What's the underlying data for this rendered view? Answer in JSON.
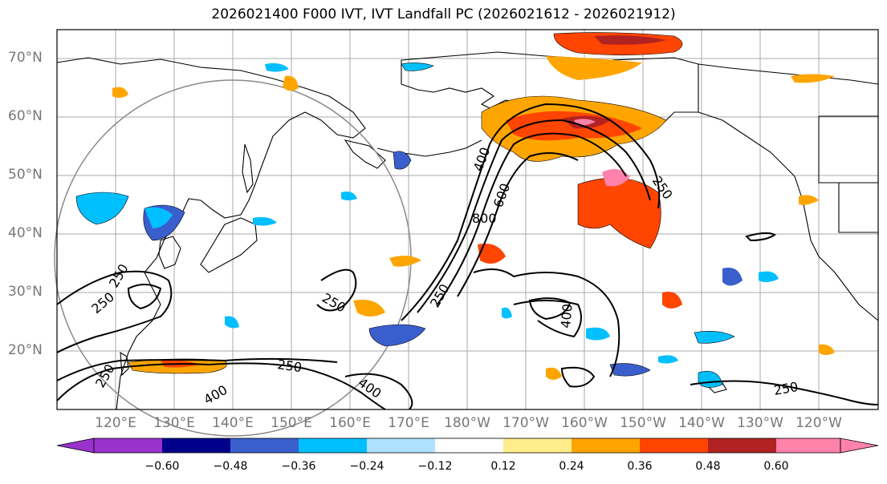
{
  "title": "2026021400 F000 IVT, IVT Landfall PC (2026021612 - 2026021912)",
  "lat_labels": [
    "70°N",
    "60°N",
    "50°N",
    "40°N",
    "30°N",
    "20°N"
  ],
  "lon_labels": [
    "120°E",
    "130°E",
    "140°E",
    "150°E",
    "160°E",
    "170°E",
    "180°W",
    "170°W",
    "160°W",
    "150°W",
    "140°W",
    "130°W",
    "120°W"
  ],
  "contour_labels": [
    "250",
    "400",
    "600",
    "800",
    "250",
    "250",
    "400",
    "250",
    "250",
    "250",
    "400",
    "250",
    "400",
    "250"
  ],
  "colorbar": {
    "ticks": [
      "−0.60",
      "−0.48",
      "−0.36",
      "−0.24",
      "−0.12",
      "0.12",
      "0.24",
      "0.36",
      "0.48",
      "0.60"
    ],
    "colors": [
      "#9932cc",
      "#00008b",
      "#3a5fcd",
      "#00bfff",
      "#b0e2ff",
      "#ffffff",
      "#ffec8b",
      "#ffa500",
      "#ff4500",
      "#b22222",
      "#ff82ab"
    ]
  },
  "colors": {
    "land_outline": "#000000",
    "grid": "#aaaaaa",
    "circle": "#888888"
  }
}
